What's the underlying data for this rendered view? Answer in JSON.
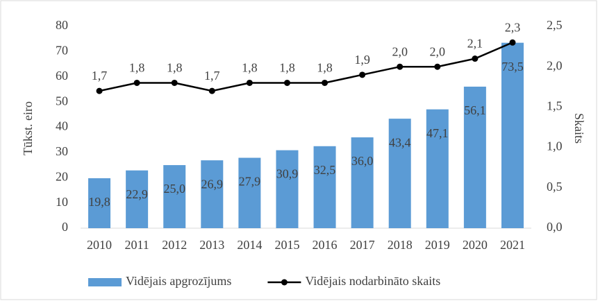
{
  "chart_data": {
    "type": "combo",
    "categories": [
      "2010",
      "2011",
      "2012",
      "2013",
      "2014",
      "2015",
      "2016",
      "2017",
      "2018",
      "2019",
      "2020",
      "2021"
    ],
    "series": [
      {
        "name": "Vidējais apgrozījums",
        "type": "bar",
        "color": "#5b9bd5",
        "axis": "y",
        "values": [
          19.8,
          22.9,
          25.0,
          26.9,
          27.9,
          30.9,
          32.5,
          36.0,
          43.4,
          47.1,
          56.1,
          73.5
        ],
        "value_labels": [
          "19,8",
          "22,9",
          "25,0",
          "26,9",
          "27,9",
          "30,9",
          "32,5",
          "36,0",
          "43,4",
          "47,1",
          "56,1",
          "73,5"
        ]
      },
      {
        "name": "Vidējais nodarbināto skaits",
        "type": "line",
        "color": "#000000",
        "axis": "y2",
        "values": [
          1.7,
          1.8,
          1.8,
          1.7,
          1.8,
          1.8,
          1.8,
          1.9,
          2.0,
          2.0,
          2.1,
          2.3
        ],
        "value_labels": [
          "1,7",
          "1,8",
          "1,8",
          "1,7",
          "1,8",
          "1,8",
          "1,8",
          "1,9",
          "2,0",
          "2,0",
          "2,1",
          "2,3"
        ]
      }
    ],
    "ylabel": "Tūkst. eiro",
    "y2label": "Skaits",
    "ylim": [
      0,
      80
    ],
    "yticks": [
      0,
      10,
      20,
      30,
      40,
      50,
      60,
      70,
      80
    ],
    "y2lim": [
      0,
      2.5
    ],
    "y2ticks": [
      {
        "value": 0,
        "label": "0,0"
      },
      {
        "value": 0.5,
        "label": "0,5"
      },
      {
        "value": 1,
        "label": "1,0"
      },
      {
        "value": 1.5,
        "label": "1,5"
      },
      {
        "value": 2,
        "label": "2,0"
      },
      {
        "value": 2.5,
        "label": "2,5"
      }
    ],
    "legend": "bottom"
  }
}
